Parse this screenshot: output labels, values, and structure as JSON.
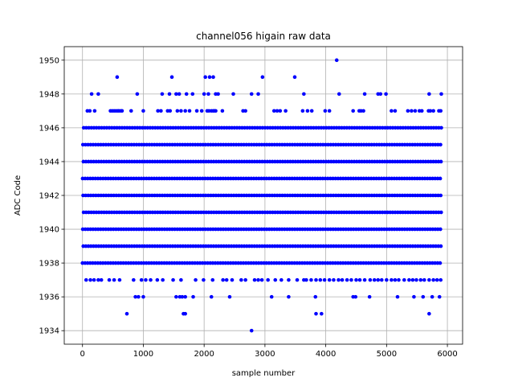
{
  "chart_data": {
    "type": "scatter",
    "title": "channel056 higain raw data",
    "xlabel": "sample number",
    "ylabel": "ADC Code",
    "xlim": [
      -300,
      6250
    ],
    "ylim": [
      1933.2,
      1950.8
    ],
    "xticks": [
      0,
      1000,
      2000,
      3000,
      4000,
      5000,
      6000
    ],
    "xtick_labels": [
      "0",
      "1000",
      "2000",
      "3000",
      "4000",
      "5000",
      "6000"
    ],
    "yticks": [
      1934,
      1936,
      1938,
      1940,
      1942,
      1944,
      1946,
      1948,
      1950
    ],
    "ytick_labels": [
      "1934",
      "1936",
      "1938",
      "1940",
      "1942",
      "1944",
      "1946",
      "1948",
      "1950"
    ],
    "grid": true,
    "marker_color": "#0000ff",
    "series": [
      {
        "x_range": [
          0,
          5920
        ],
        "dense_levels": [
          1938,
          1939,
          1940,
          1941,
          1942,
          1943,
          1944,
          1945,
          1946
        ],
        "sparse_points": [
          {
            "y": 1950,
            "x": [
              4180
            ]
          },
          {
            "y": 1949,
            "x": [
              570,
              1470,
              2020,
              2090,
              2150,
              2960,
              3490
            ]
          },
          {
            "y": 1948,
            "x": [
              150,
              260,
              900,
              1310,
              1430,
              1540,
              1590,
              1710,
              1810,
              2000,
              2070,
              2190,
              2230,
              2480,
              2780,
              2890,
              3640,
              4220,
              4640,
              4860,
              4900,
              4990,
              5700,
              5900
            ]
          },
          {
            "y": 1947,
            "x": [
              80,
              120,
              200,
              460,
              490,
              520,
              550,
              580,
              600,
              630,
              650,
              800,
              1000,
              1240,
              1290,
              1400,
              1440,
              1560,
              1620,
              1690,
              1760,
              1880,
              1960,
              2050,
              2080,
              2120,
              2150,
              2170,
              2190,
              2300,
              2640,
              2680,
              3150,
              3200,
              3250,
              3340,
              3620,
              3700,
              3770,
              3990,
              4060,
              4450,
              4550,
              4580,
              4620,
              5080,
              5140,
              5350,
              5410,
              5470,
              5540,
              5580,
              5690,
              5720,
              5770,
              5860,
              5890
            ]
          },
          {
            "y": 1937,
            "x": [
              60,
              130,
              190,
              260,
              310,
              440,
              520,
              610,
              840,
              970,
              1040,
              1120,
              1230,
              1320,
              1490,
              1620,
              1860,
              1990,
              2140,
              2310,
              2370,
              2460,
              2610,
              2680,
              2830,
              2890,
              2950,
              3050,
              3170,
              3270,
              3390,
              3530,
              3640,
              3680,
              3760,
              3840,
              3910,
              3980,
              4060,
              4130,
              4210,
              4270,
              4350,
              4420,
              4500,
              4560,
              4640,
              4730,
              4800,
              4860,
              4920,
              5000,
              5080,
              5140,
              5200,
              5290,
              5370,
              5430,
              5490,
              5560,
              5620,
              5700,
              5770,
              5830,
              5890
            ]
          },
          {
            "y": 1936,
            "x": [
              870,
              920,
              1000,
              1540,
              1600,
              1640,
              1690,
              1820,
              2120,
              2420,
              3110,
              3390,
              3830,
              4450,
              4490,
              4720,
              5180,
              5450,
              5600,
              5750,
              5870
            ]
          },
          {
            "y": 1935,
            "x": [
              730,
              1660,
              1690,
              3840,
              3930,
              5700
            ]
          },
          {
            "y": 1934,
            "x": [
              2780
            ]
          }
        ]
      }
    ]
  }
}
